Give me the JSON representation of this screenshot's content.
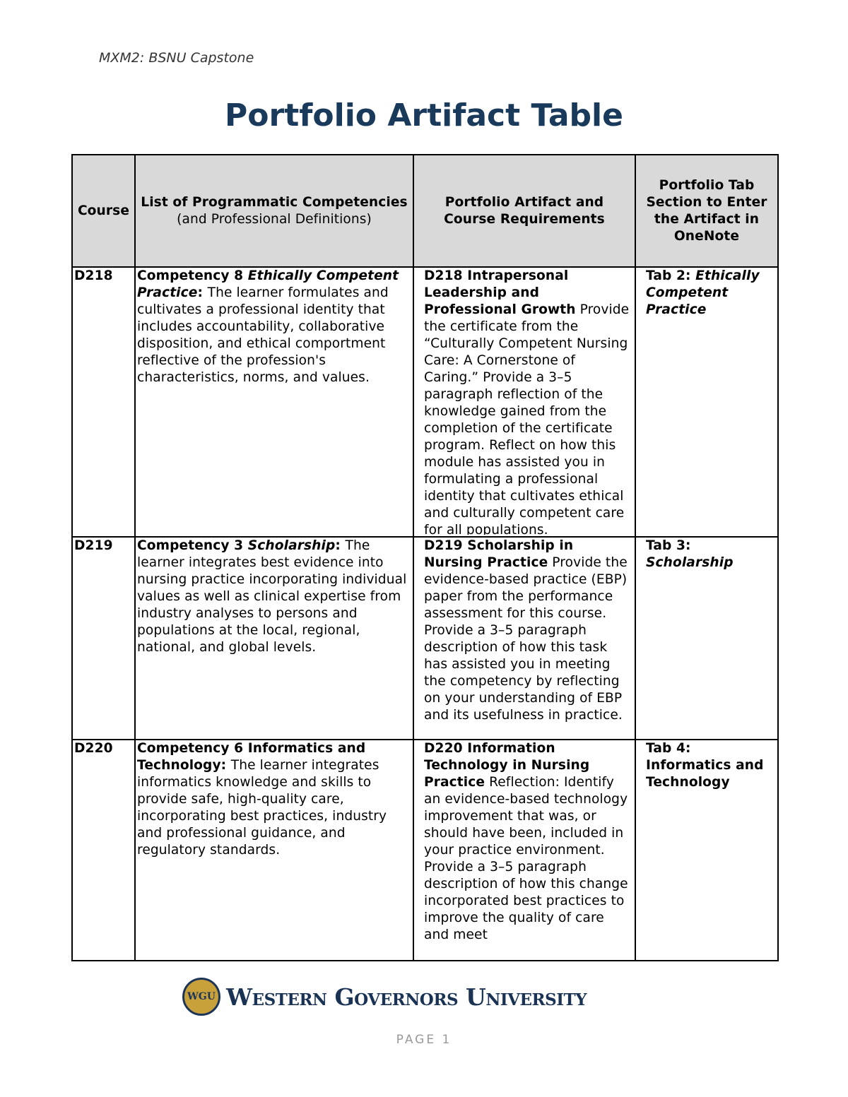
{
  "header": {
    "running_title": "MXM2: BSNU Capstone"
  },
  "title": "Portfolio Artifact Table",
  "table": {
    "headers": {
      "course": "Course",
      "competencies": "List of Programmatic Competencies",
      "competencies_sub": "(and Professional Definitions)",
      "artifact": "Portfolio Artifact and Course Requirements",
      "tab": "Portfolio Tab Section to Enter the Artifact in OneNote"
    },
    "rows": [
      {
        "course": "D218",
        "competency": [
          {
            "t": "Competency 8 ",
            "s": "b"
          },
          {
            "t": "Ethically Competent Practice",
            "s": "b i"
          },
          {
            "t": ": ",
            "s": "b"
          },
          {
            "t": "The learner formulates and cultivates a professional identity that includes accountability, collaborative disposition, and ethical comportment reflective of the profession's characteristics, norms, and values.",
            "s": ""
          }
        ],
        "artifact": [
          {
            "t": "D218 Intrapersonal Leadership and Professional Growth",
            "s": "b"
          },
          {
            "t": " Provide the certificate from the “Culturally Competent Nursing Care: A Cornerstone of Caring.” Provide a 3–5 paragraph reflection of the knowledge gained from the completion of the certificate program. Reflect on how this module has assisted you in formulating a professional identity that cultivates ethical and culturally competent care for all populations.",
            "s": ""
          }
        ],
        "tab": [
          {
            "t": "Tab 2: ",
            "s": "b"
          },
          {
            "t": "Ethically Competent Practice",
            "s": "b i"
          }
        ]
      },
      {
        "course": "D219",
        "competency": [
          {
            "t": "Competency 3 ",
            "s": "b"
          },
          {
            "t": "Scholarship",
            "s": "b i"
          },
          {
            "t": ": ",
            "s": "b"
          },
          {
            "t": "The learner integrates best evidence into nursing practice incorporating individual values as well as clinical expertise from industry analyses to persons and populations at the local, regional, national, and global levels.",
            "s": ""
          }
        ],
        "artifact": [
          {
            "t": "D219 Scholarship in Nursing Practice",
            "s": "b"
          },
          {
            "t": " Provide the evidence-based practice (EBP) paper from the performance assessment for this course. Provide a 3–5 paragraph description of how this task has assisted you in meeting the competency by reflecting on your understanding of EBP and its usefulness in practice.",
            "s": ""
          }
        ],
        "tab": [
          {
            "t": "Tab 3: ",
            "s": "b"
          },
          {
            "t": "Scholarship",
            "s": "b i"
          }
        ]
      },
      {
        "course": "D220",
        "competency": [
          {
            "t": "Competency 6 Informatics and Technology: ",
            "s": "b"
          },
          {
            "t": "The learner integrates informatics knowledge and skills to provide safe, high-quality care, incorporating best practices, industry and professional guidance, and regulatory standards.",
            "s": ""
          }
        ],
        "artifact": [
          {
            "t": "D220 Information Technology in Nursing Practice",
            "s": "b"
          },
          {
            "t": " Reflection: Identify an evidence-based technology improvement that was, or should have been, included in your practice environment. Provide a 3–5 paragraph description of how this change incorporated best practices to improve the quality of care and meet",
            "s": ""
          }
        ],
        "tab": [
          {
            "t": "Tab 4: Informatics and Technology",
            "s": "b"
          }
        ]
      }
    ]
  },
  "footer": {
    "logo_text": "Western Governors University",
    "seal_text": "WGU",
    "page_label": "PAGE 1"
  },
  "colors": {
    "title": "#1a3a5c",
    "header_fill": "#d9d9d9",
    "logo_navy": "#1a3354",
    "logo_gold": "#c9a13a"
  }
}
